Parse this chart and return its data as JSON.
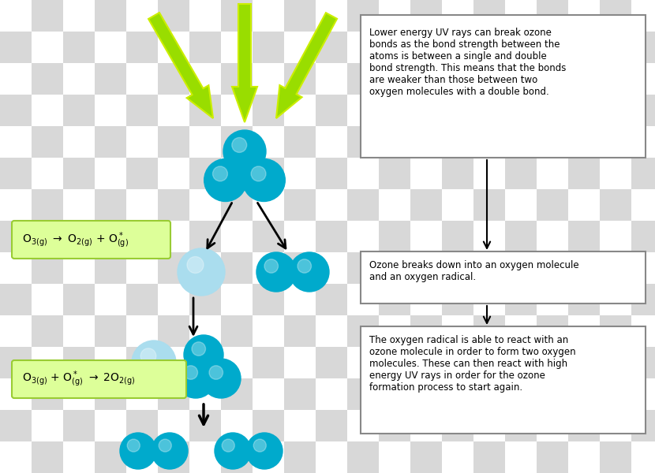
{
  "bg_checker_light": "#ffffff",
  "bg_checker_dark": "#d8d8d8",
  "checker_size": 40,
  "teal_dark": "#00aacc",
  "teal_light": "#aaddee",
  "green_arrow": "#99dd00",
  "green_box_bg": "#ddff99",
  "green_box_border": "#99cc33",
  "text_box_border": "#888888",
  "text_box_bg": "#ffffff",
  "arrow_color": "#111111",
  "equation1": "O₃₊₏₎ → O₂₊₏₎ + O*₊₏₎",
  "equation2": "O₃₊₏₎ + O*₊₏₎ → 2O₂₊₏₎",
  "box1_text": "Lower energy UV rays can break ozone\nbonds as the bond strength between the\natoms is between a single and double\nbond strength. This means that the bonds\nare weaker than those between two\noxygen molecules with a double bond.",
  "box2_text": "Ozone breaks down into an oxygen molecule\nand an oxygen radical.",
  "box3_text": "The oxygen radical is able to react with an\nozone molecule in order to form two oxygen\nmolecules. These can then react with high\nenergy UV rays in order for the ozone\nformation process to start again."
}
